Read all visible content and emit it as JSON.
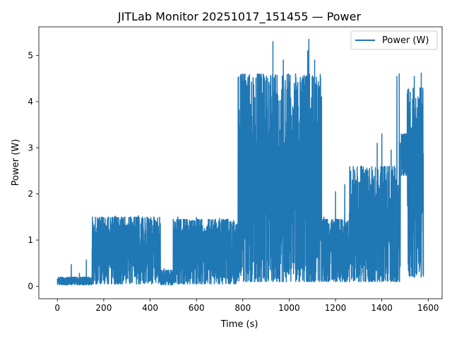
{
  "chart_data": {
    "type": "line",
    "title": "JITLab Monitor 20251017_151455 — Power",
    "xlabel": "Time (s)",
    "ylabel": "Power (W)",
    "xlim": [
      -80,
      1660
    ],
    "ylim": [
      -0.27,
      5.62
    ],
    "xticks": [
      0,
      200,
      400,
      600,
      800,
      1000,
      1200,
      1400,
      1600
    ],
    "yticks": [
      0,
      1,
      2,
      3,
      4,
      5
    ],
    "grid": false,
    "legend": {
      "placement": "top-right",
      "entries": [
        "Power (W)"
      ]
    },
    "series": [
      {
        "name": "Power (W)",
        "color": "#1f77b4",
        "segments": [
          {
            "t0": 0,
            "t1": 150,
            "lo": 0.03,
            "hi": 0.2,
            "spikes": [
              [
                60,
                0.47
              ],
              [
                95,
                0.28
              ],
              [
                125,
                0.57
              ]
            ]
          },
          {
            "t0": 150,
            "t1": 445,
            "lo": 0.05,
            "hi": 1.5,
            "spikes": [
              [
                155,
                1.27
              ],
              [
                170,
                1.26
              ],
              [
                250,
                1.52
              ],
              [
                350,
                1.53
              ]
            ]
          },
          {
            "t0": 445,
            "t1": 500,
            "lo": 0.03,
            "hi": 0.35,
            "spikes": [
              [
                460,
                0.38
              ],
              [
                480,
                0.35
              ]
            ]
          },
          {
            "t0": 500,
            "t1": 780,
            "lo": 0.05,
            "hi": 1.45,
            "spikes": [
              [
                520,
                1.5
              ],
              [
                600,
                1.49
              ],
              [
                700,
                1.47
              ]
            ]
          },
          {
            "t0": 780,
            "t1": 1140,
            "lo": 0.1,
            "hi": 4.6,
            "spikes": [
              [
                850,
                4.0
              ],
              [
                930,
                5.3
              ],
              [
                975,
                4.9
              ],
              [
                1080,
                5.1
              ],
              [
                1085,
                5.35
              ],
              [
                1110,
                4.9
              ]
            ]
          },
          {
            "t0": 1140,
            "t1": 1260,
            "lo": 0.1,
            "hi": 1.45,
            "spikes": [
              [
                1150,
                1.5
              ],
              [
                1200,
                2.05
              ],
              [
                1240,
                2.2
              ]
            ]
          },
          {
            "t0": 1260,
            "t1": 1480,
            "lo": 0.1,
            "hi": 2.6,
            "spikes": [
              [
                1330,
                2.45
              ],
              [
                1380,
                3.1
              ],
              [
                1400,
                3.3
              ],
              [
                1440,
                2.95
              ],
              [
                1465,
                4.55
              ],
              [
                1475,
                4.6
              ]
            ]
          },
          {
            "t0": 1480,
            "t1": 1510,
            "lo": 2.4,
            "hi": 3.3,
            "spikes": [
              [
                1495,
                3.3
              ]
            ]
          },
          {
            "t0": 1510,
            "t1": 1580,
            "lo": 0.2,
            "hi": 4.3,
            "spikes": [
              [
                1540,
                4.55
              ],
              [
                1570,
                4.62
              ]
            ]
          }
        ]
      }
    ]
  }
}
